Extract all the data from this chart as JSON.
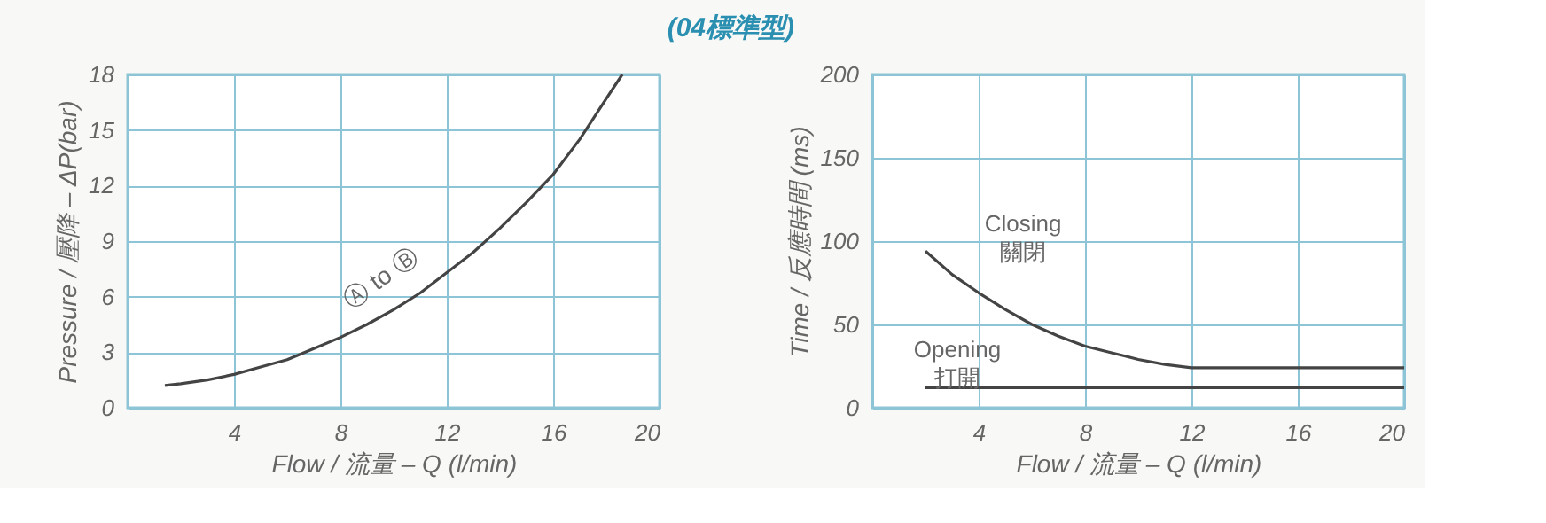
{
  "chart_data": [
    {
      "type": "line",
      "title": "(04標準型)",
      "xlabel": "Flow / 流量 – Q (l/min)",
      "ylabel": "Pressure / 壓降 – ΔP(bar)",
      "xlim": [
        0,
        20
      ],
      "xticks": [
        {
          "value": 0,
          "label": null
        },
        4,
        8,
        12,
        16,
        20
      ],
      "ylim": [
        0,
        18
      ],
      "yticks": [
        0,
        3,
        6,
        9,
        12,
        15,
        18
      ],
      "grid": true,
      "marker": "none",
      "line_style": "solid",
      "annotations": [
        {
          "text": "Ⓐ to Ⓑ",
          "x": 10,
          "y": 6
        }
      ],
      "series": [
        {
          "color": "#444444",
          "x": [
            1.4,
            2,
            3,
            4,
            5,
            6,
            7,
            8,
            9,
            10,
            11,
            12,
            13,
            14,
            15,
            16,
            17,
            18,
            18.6
          ],
          "values": [
            1.2,
            1.3,
            1.5,
            1.8,
            2.2,
            2.6,
            3.2,
            3.8,
            4.5,
            5.3,
            6.2,
            7.3,
            8.4,
            9.7,
            11.1,
            12.6,
            14.5,
            16.7,
            18
          ]
        }
      ]
    },
    {
      "type": "line",
      "xlabel": "Flow / 流量 – Q (l/min)",
      "ylabel": "Time / 反應時間 (ms)",
      "xlim": [
        0,
        20
      ],
      "xticks": [
        {
          "value": 0,
          "label": null
        },
        4,
        8,
        12,
        16,
        20
      ],
      "ylim": [
        0,
        200
      ],
      "yticks": [
        0,
        50,
        100,
        150,
        200
      ],
      "grid": true,
      "marker": "none",
      "line_style": "solid",
      "series": [
        {
          "name": "Closing\n關閉",
          "color": "#444444",
          "x": [
            2,
            3,
            4,
            5,
            6,
            7,
            8,
            9,
            10,
            11,
            12,
            13,
            16,
            20
          ],
          "values": [
            94,
            80,
            69,
            59,
            50,
            43,
            37,
            33,
            29,
            26,
            24,
            24,
            24,
            24
          ]
        },
        {
          "name": "Opening\n打開",
          "color": "#444444",
          "x": [
            2,
            20
          ],
          "values": [
            12,
            12
          ]
        }
      ]
    }
  ]
}
